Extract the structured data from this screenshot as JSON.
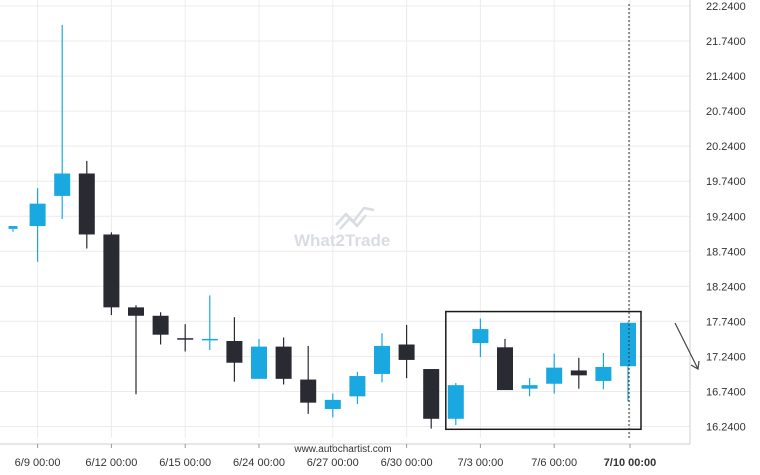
{
  "chart_data": {
    "type": "candlestick",
    "y_ticks": [
      "22.2400",
      "21.7400",
      "21.2400",
      "20.7400",
      "20.2400",
      "19.7400",
      "19.2400",
      "18.7400",
      "18.2400",
      "17.7400",
      "17.2400",
      "16.7400",
      "16.2400"
    ],
    "ylim": [
      16.08,
      22.3
    ],
    "x_ticks": [
      {
        "label": "6/9 00:00",
        "index": 1
      },
      {
        "label": "6/12 00:00",
        "index": 4
      },
      {
        "label": "6/15 00:00",
        "index": 7
      },
      {
        "label": "6/24 00:00",
        "index": 10
      },
      {
        "label": "6/27 00:00",
        "index": 13
      },
      {
        "label": "6/30 00:00",
        "index": 16
      },
      {
        "label": "7/3 00:00",
        "index": 19
      },
      {
        "label": "7/6 00:00",
        "index": 22
      },
      {
        "label": "7/10 00:00",
        "index": 25,
        "bold": true
      }
    ],
    "candles": [
      {
        "o": 19.06,
        "h": 19.06,
        "l": 19.02,
        "c": 19.1
      },
      {
        "o": 19.1,
        "h": 19.64,
        "l": 18.59,
        "c": 19.42
      },
      {
        "o": 19.53,
        "h": 21.97,
        "l": 19.2,
        "c": 19.85
      },
      {
        "o": 19.85,
        "h": 20.03,
        "l": 18.78,
        "c": 18.98
      },
      {
        "o": 18.98,
        "h": 19.01,
        "l": 17.83,
        "c": 17.94
      },
      {
        "o": 17.94,
        "h": 17.97,
        "l": 16.7,
        "c": 17.82
      },
      {
        "o": 17.82,
        "h": 17.87,
        "l": 17.41,
        "c": 17.55
      },
      {
        "o": 17.5,
        "h": 17.7,
        "l": 17.31,
        "c": 17.48
      },
      {
        "o": 17.47,
        "h": 18.11,
        "l": 17.33,
        "c": 17.49
      },
      {
        "o": 17.46,
        "h": 17.8,
        "l": 16.88,
        "c": 17.15
      },
      {
        "o": 16.92,
        "h": 17.49,
        "l": 16.92,
        "c": 17.38
      },
      {
        "o": 17.38,
        "h": 17.51,
        "l": 16.84,
        "c": 16.92
      },
      {
        "o": 16.91,
        "h": 17.39,
        "l": 16.42,
        "c": 16.58
      },
      {
        "o": 16.49,
        "h": 16.71,
        "l": 16.37,
        "c": 16.62
      },
      {
        "o": 16.67,
        "h": 17.02,
        "l": 16.56,
        "c": 16.96
      },
      {
        "o": 16.99,
        "h": 17.57,
        "l": 16.87,
        "c": 17.39
      },
      {
        "o": 17.41,
        "h": 17.69,
        "l": 16.93,
        "c": 17.19
      },
      {
        "o": 17.06,
        "h": 17.06,
        "l": 16.21,
        "c": 16.35
      },
      {
        "o": 16.35,
        "h": 16.86,
        "l": 16.26,
        "c": 16.83
      },
      {
        "o": 17.43,
        "h": 17.78,
        "l": 17.23,
        "c": 17.63
      },
      {
        "o": 17.37,
        "h": 17.49,
        "l": 16.76,
        "c": 16.76
      },
      {
        "o": 16.78,
        "h": 16.93,
        "l": 16.67,
        "c": 16.83
      },
      {
        "o": 16.85,
        "h": 17.28,
        "l": 16.71,
        "c": 17.08
      },
      {
        "o": 17.04,
        "h": 17.22,
        "l": 16.78,
        "c": 16.97
      },
      {
        "o": 16.89,
        "h": 17.29,
        "l": 16.77,
        "c": 17.09
      },
      {
        "o": 17.1,
        "h": 17.73,
        "l": 16.6,
        "c": 17.72
      }
    ],
    "colors": {
      "up": "#1aa8e1",
      "down": "#2a2a33",
      "grid": "#ececec",
      "box": "#1a1a1a"
    },
    "pattern_box": {
      "start_index": 18,
      "end_index": 25,
      "y_top": 17.88,
      "y_bottom": 16.2
    },
    "marker_index": 25,
    "projection_arrow": "down"
  },
  "watermark": {
    "text": "What2Trade"
  },
  "source": {
    "text": "www.autochartist.com"
  }
}
